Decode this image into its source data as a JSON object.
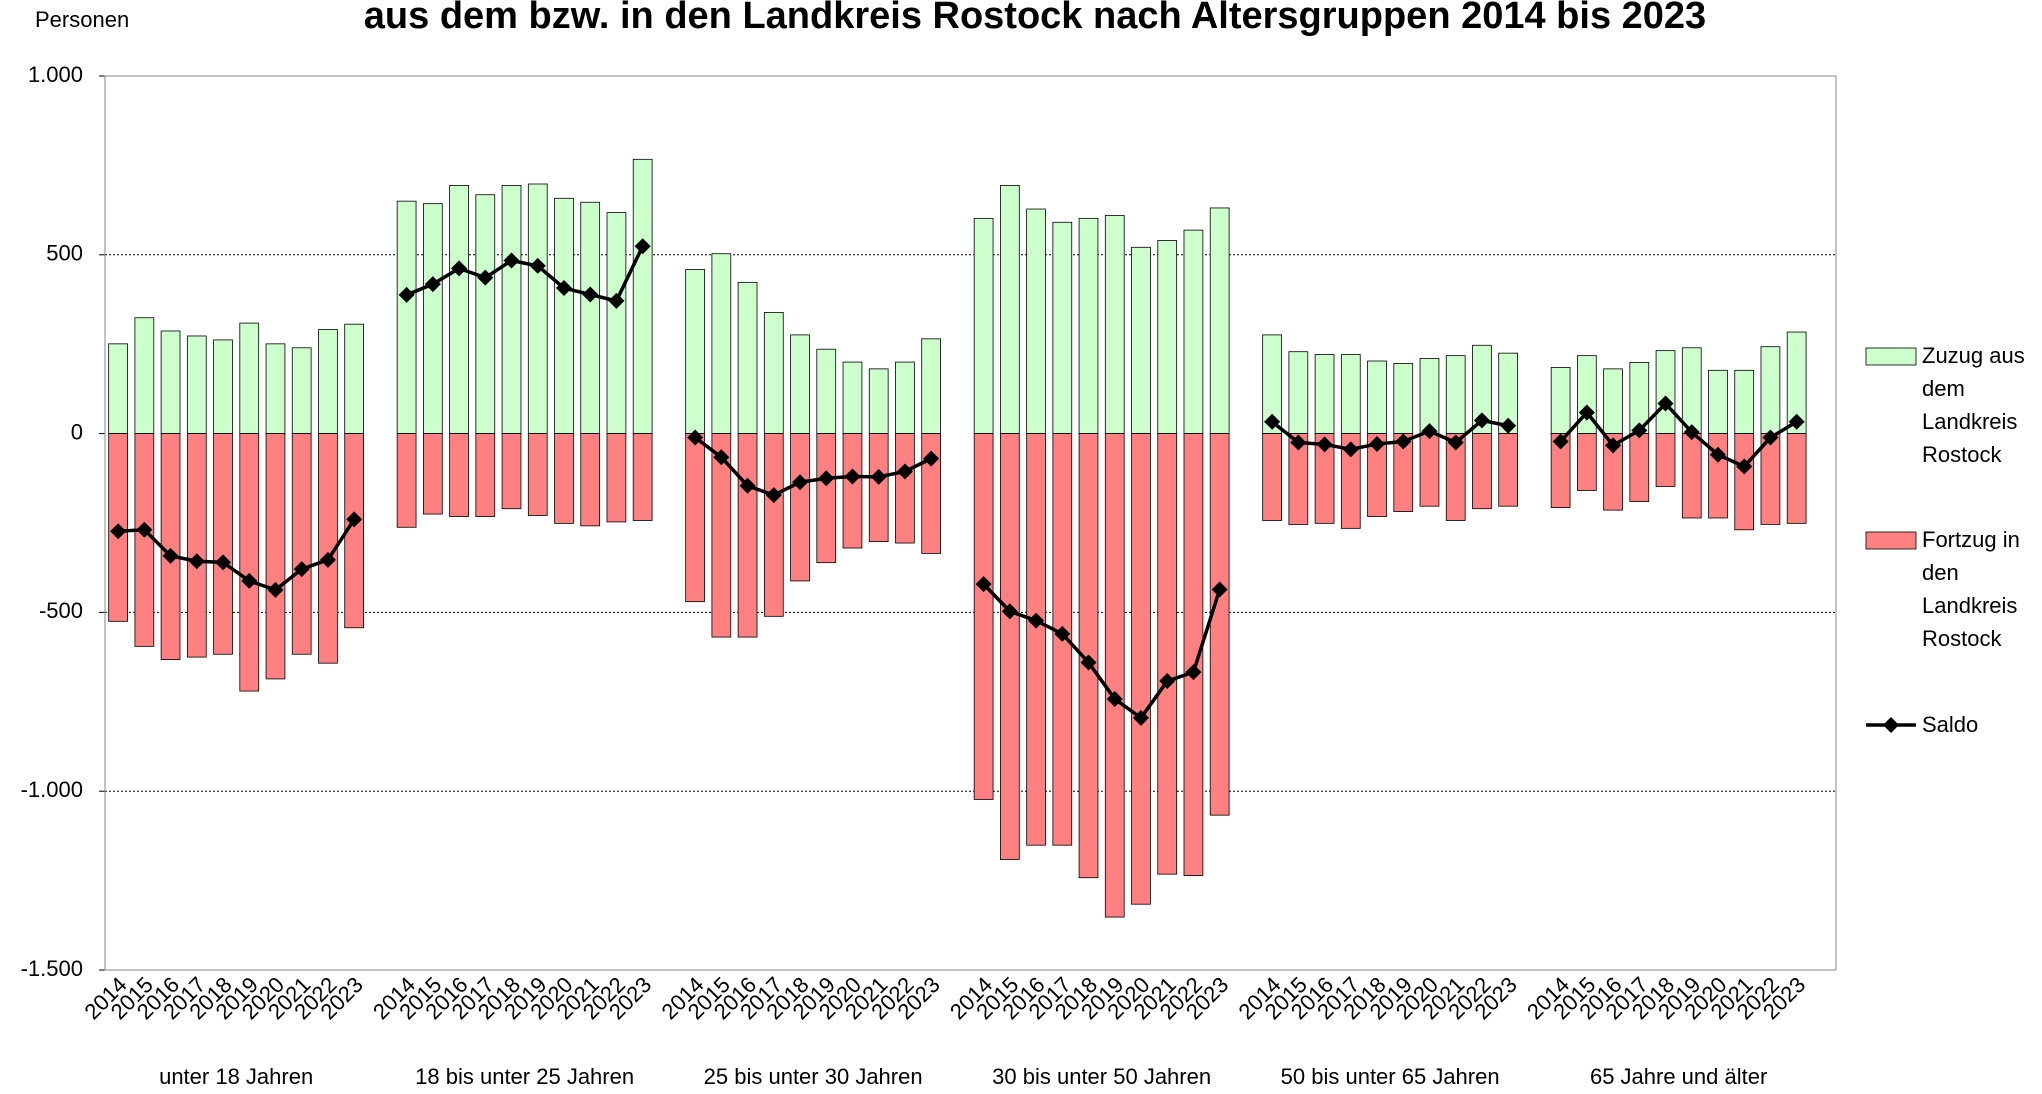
{
  "chart_data": {
    "type": "bar-line",
    "title": "aus dem bzw. in den Landkreis Rostock nach Altersgruppen 2014 bis 2023",
    "y_axis_label": "Personen",
    "groups": [
      "unter 18 Jahren",
      "18 bis unter 25 Jahren",
      "25 bis unter 30 Jahren",
      "30 bis unter 50 Jahren",
      "50 bis unter 65 Jahren",
      "65 Jahre und älter"
    ],
    "categories": [
      "2014",
      "2015",
      "2016",
      "2017",
      "2018",
      "2019",
      "2020",
      "2021",
      "2022",
      "2023",
      "2014",
      "2015",
      "2016",
      "2017",
      "2018",
      "2019",
      "2020",
      "2021",
      "2022",
      "2023",
      "2014",
      "2015",
      "2016",
      "2017",
      "2018",
      "2019",
      "2020",
      "2021",
      "2022",
      "2023",
      "2014",
      "2015",
      "2016",
      "2017",
      "2018",
      "2019",
      "2020",
      "2021",
      "2022",
      "2023",
      "2014",
      "2015",
      "2016",
      "2017",
      "2018",
      "2019",
      "2020",
      "2021",
      "2022",
      "2023",
      "2014",
      "2015",
      "2016",
      "2017",
      "2018",
      "2019",
      "2020",
      "2021",
      "2022",
      "2023"
    ],
    "series": [
      {
        "name": "Zuzug aus dem Landkreis Rostock",
        "kind": "bar",
        "color": "#ccffcc",
        "values": [
          251,
          324,
          287,
          273,
          262,
          309,
          251,
          240,
          291,
          306,
          650,
          643,
          694,
          668,
          694,
          698,
          658,
          647,
          618,
          767,
          459,
          503,
          423,
          339,
          276,
          236,
          200,
          181,
          200,
          265,
          602,
          694,
          628,
          591,
          602,
          610,
          521,
          540,
          569,
          631,
          276,
          229,
          221,
          221,
          203,
          196,
          210,
          218,
          247,
          225,
          185,
          218,
          181,
          199,
          232,
          240,
          177,
          177,
          243,
          284
        ]
      },
      {
        "name": "Fortzug in den Landkreis Rostock",
        "kind": "bar",
        "color": "#ff8080",
        "values": [
          -525,
          -595,
          -632,
          -625,
          -617,
          -720,
          -686,
          -617,
          -642,
          -543,
          -262,
          -225,
          -232,
          -232,
          -210,
          -229,
          -251,
          -258,
          -247,
          -243,
          -470,
          -569,
          -569,
          -511,
          -412,
          -361,
          -320,
          -302,
          -306,
          -335,
          -1023,
          -1191,
          -1151,
          -1151,
          -1242,
          -1352,
          -1316,
          -1232,
          -1236,
          -1067,
          -243,
          -254,
          -251,
          -265,
          -232,
          -218,
          -203,
          -243,
          -210,
          -203,
          -207,
          -159,
          -214,
          -190,
          -148,
          -236,
          -236,
          -269,
          -254,
          -251
        ]
      },
      {
        "name": "Saldo",
        "kind": "line",
        "color": "#000000",
        "values": [
          -273,
          -269,
          -342,
          -357,
          -360,
          -412,
          -437,
          -379,
          -353,
          -240,
          388,
          418,
          462,
          436,
          484,
          469,
          407,
          389,
          371,
          524,
          -11,
          -66,
          -146,
          -172,
          -136,
          -125,
          -120,
          -121,
          -106,
          -70,
          -421,
          -497,
          -523,
          -560,
          -640,
          -742,
          -795,
          -692,
          -667,
          -436,
          33,
          -25,
          -30,
          -44,
          -29,
          -22,
          7,
          -25,
          37,
          22,
          -22,
          59,
          -33,
          9,
          84,
          4,
          -59,
          -92,
          -11,
          33
        ]
      }
    ],
    "ylim": [
      -1500,
      1000
    ],
    "yticks": [
      {
        "value": -1500,
        "label": "-1.500"
      },
      {
        "value": -1000,
        "label": "-1.000"
      },
      -500,
      0,
      500,
      {
        "value": 1000,
        "label": "1.000"
      }
    ],
    "grid": true
  }
}
